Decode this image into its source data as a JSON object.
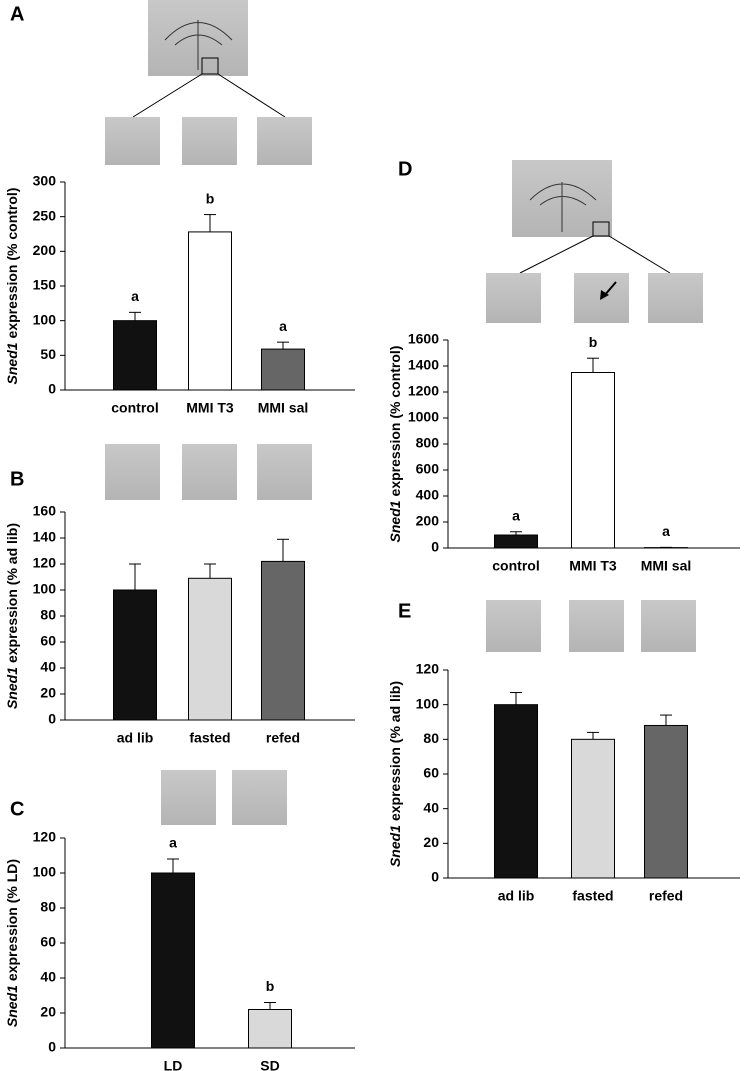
{
  "chart_data": [
    {
      "type": "bar",
      "panel": "A",
      "ylabel_italic": "Sned1",
      "ylabel": "expression (% control)",
      "categories": [
        "control",
        "MMI T3",
        "MMI sal"
      ],
      "values": [
        100,
        228,
        59
      ],
      "errors": [
        12,
        25,
        10
      ],
      "letters": [
        "a",
        "b",
        "a"
      ],
      "colors": [
        "#111111",
        "#ffffff",
        "#666666"
      ],
      "ylim": [
        0,
        300
      ],
      "yticks": [
        0,
        50,
        100,
        150,
        200,
        250,
        300
      ]
    },
    {
      "type": "bar",
      "panel": "B",
      "ylabel_italic": "Sned1",
      "ylabel": "expression (% ad lib)",
      "categories": [
        "ad lib",
        "fasted",
        "refed"
      ],
      "values": [
        100,
        109,
        122
      ],
      "errors": [
        20,
        11,
        17
      ],
      "colors": [
        "#111111",
        "#d9d9d9",
        "#666666"
      ],
      "ylim": [
        0,
        160
      ],
      "yticks": [
        0,
        20,
        40,
        60,
        80,
        100,
        120,
        140,
        160
      ]
    },
    {
      "type": "bar",
      "panel": "C",
      "ylabel_italic": "Sned1",
      "ylabel": "expression (% LD)",
      "categories": [
        "LD",
        "SD"
      ],
      "values": [
        100,
        22
      ],
      "errors": [
        8,
        4
      ],
      "letters": [
        "a",
        "b"
      ],
      "colors": [
        "#111111",
        "#d9d9d9"
      ],
      "ylim": [
        0,
        120
      ],
      "yticks": [
        0,
        20,
        40,
        60,
        80,
        100,
        120
      ]
    },
    {
      "type": "bar",
      "panel": "D",
      "ylabel_italic": "Sned1",
      "ylabel": "expression (% control)",
      "categories": [
        "control",
        "MMI T3",
        "MMI sal"
      ],
      "values": [
        100,
        1350,
        3
      ],
      "errors": [
        25,
        110,
        2
      ],
      "letters": [
        "a",
        "b",
        "a"
      ],
      "colors": [
        "#111111",
        "#ffffff",
        "#666666"
      ],
      "ylim": [
        0,
        1600
      ],
      "yticks": [
        0,
        200,
        400,
        600,
        800,
        1000,
        1200,
        1400,
        1600
      ]
    },
    {
      "type": "bar",
      "panel": "E",
      "ylabel_italic": "Sned1",
      "ylabel": "expression (% ad lib)",
      "categories": [
        "ad lib",
        "fasted",
        "refed"
      ],
      "values": [
        100,
        80,
        88
      ],
      "errors": [
        7,
        4,
        6
      ],
      "colors": [
        "#111111",
        "#d9d9d9",
        "#666666"
      ],
      "ylim": [
        0,
        120
      ],
      "yticks": [
        0,
        20,
        40,
        60,
        80,
        100,
        120
      ]
    }
  ]
}
